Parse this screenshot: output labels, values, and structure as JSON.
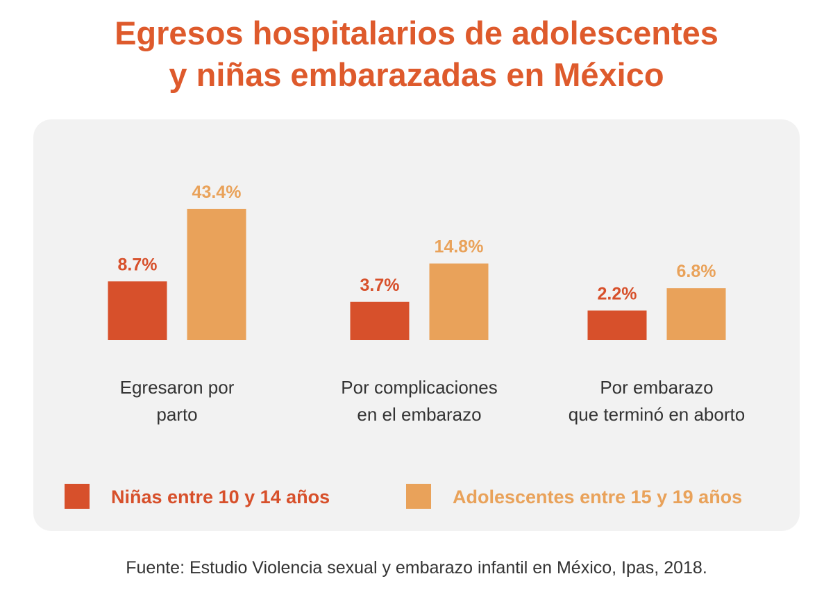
{
  "title_lines": [
    "Egresos hospitalarios de adolescentes",
    "y niñas embarazadas en México"
  ],
  "source": "Fuente: Estudio Violencia sexual y embarazo infantil en México, Ipas, 2018.",
  "chart_data": {
    "type": "bar",
    "title": "Egresos hospitalarios de adolescentes y niñas embarazadas en México",
    "categories": [
      [
        "Egresaron por",
        "parto"
      ],
      [
        "Por complicaciones",
        "en el embarazo"
      ],
      [
        "Por embarazo",
        "que terminó en aborto"
      ]
    ],
    "series": [
      {
        "name": "Niñas entre 10 y 14 años",
        "color": "#d7502b",
        "values": [
          8.7,
          3.7,
          2.2
        ],
        "labels": [
          "8.7%",
          "3.7%",
          "2.2%"
        ]
      },
      {
        "name": "Adolescentes entre 15 y 19 años",
        "color": "#e9a25a",
        "values": [
          43.4,
          14.8,
          6.8
        ],
        "labels": [
          "43.4%",
          "14.8%",
          "6.8%"
        ]
      }
    ],
    "unit": "%",
    "grid": false,
    "axes_visible": false,
    "legend_placement": "bottom"
  }
}
